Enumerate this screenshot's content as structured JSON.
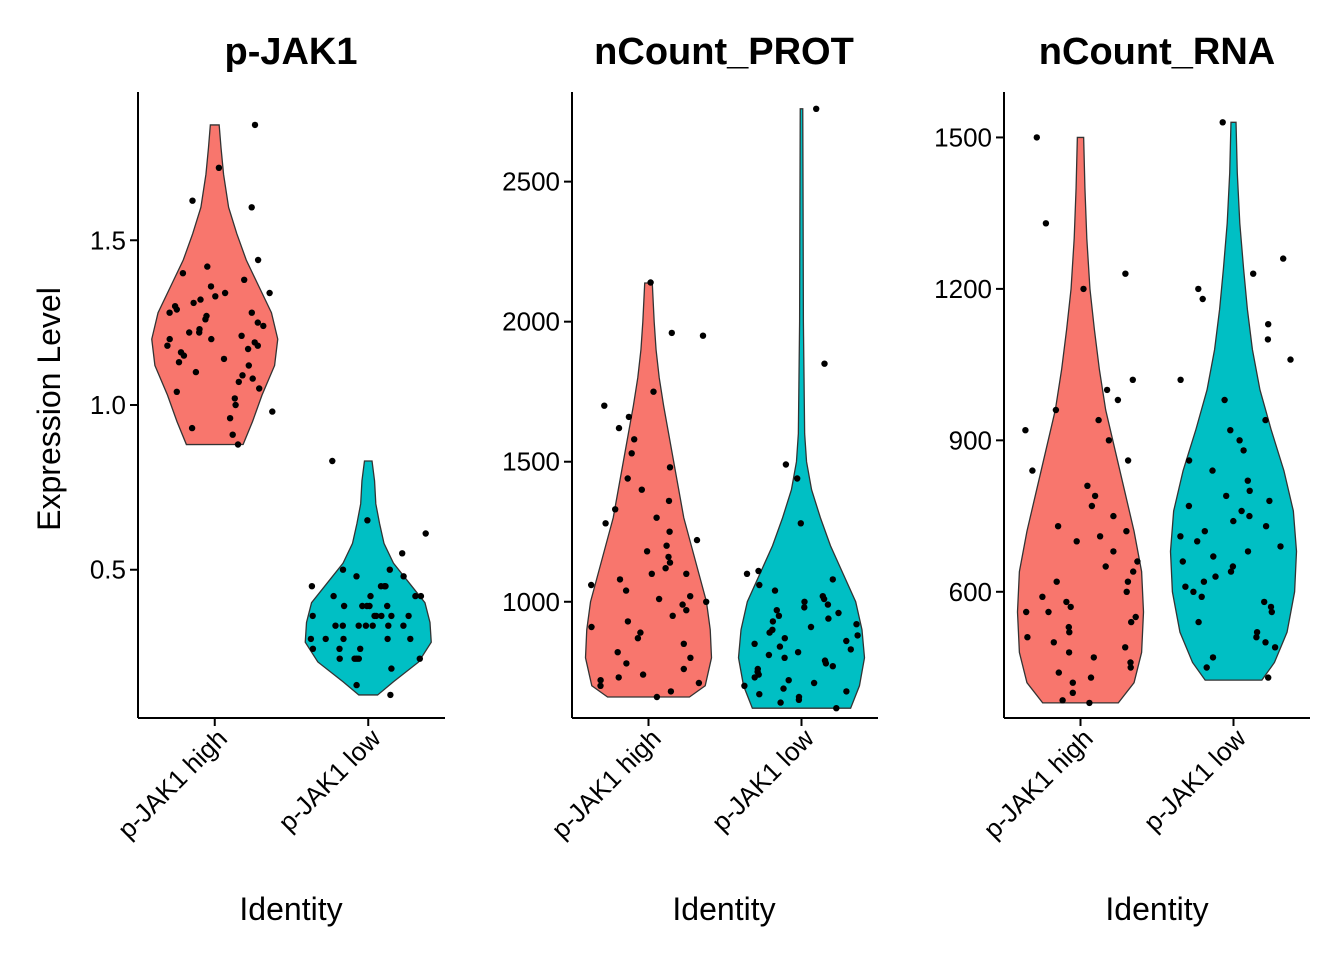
{
  "chart_data": [
    {
      "type": "violin",
      "title": "p-JAK1",
      "xlabel": "Identity",
      "ylabel": "Expression Level",
      "categories": [
        "p-JAK1 high",
        "p-JAK1 low"
      ],
      "colors": [
        "#F8766D",
        "#00BFC4"
      ],
      "ylim": [
        0.05,
        1.95
      ],
      "yticks": [
        0.5,
        1.0,
        1.5
      ],
      "ytick_labels": [
        "0.5",
        "1.0",
        "1.5"
      ],
      "violins": [
        {
          "profile": [
            [
              0.88,
              0.45
            ],
            [
              0.95,
              0.6
            ],
            [
              1.03,
              0.75
            ],
            [
              1.12,
              0.95
            ],
            [
              1.2,
              1.0
            ],
            [
              1.28,
              0.9
            ],
            [
              1.36,
              0.7
            ],
            [
              1.44,
              0.5
            ],
            [
              1.52,
              0.35
            ],
            [
              1.6,
              0.22
            ],
            [
              1.7,
              0.14
            ],
            [
              1.78,
              0.1
            ],
            [
              1.85,
              0.07
            ]
          ],
          "points": [
            0.91,
            0.93,
            0.96,
            0.98,
            1.0,
            1.02,
            1.04,
            1.05,
            1.07,
            1.08,
            1.09,
            1.1,
            1.12,
            1.13,
            1.14,
            1.15,
            1.16,
            1.17,
            1.18,
            1.19,
            1.2,
            1.2,
            1.21,
            1.22,
            1.22,
            1.23,
            1.24,
            1.25,
            1.26,
            1.27,
            1.28,
            1.29,
            1.3,
            1.31,
            1.32,
            1.33,
            1.34,
            1.36,
            1.38,
            1.4,
            1.42,
            1.44,
            1.6,
            1.62,
            1.72,
            1.85,
            0.88,
            1.28,
            1.34,
            1.18
          ]
        },
        {
          "profile": [
            [
              0.12,
              0.15
            ],
            [
              0.16,
              0.4
            ],
            [
              0.22,
              0.8
            ],
            [
              0.28,
              1.0
            ],
            [
              0.34,
              0.98
            ],
            [
              0.4,
              0.9
            ],
            [
              0.46,
              0.65
            ],
            [
              0.52,
              0.4
            ],
            [
              0.58,
              0.25
            ],
            [
              0.64,
              0.18
            ],
            [
              0.7,
              0.12
            ],
            [
              0.77,
              0.1
            ],
            [
              0.83,
              0.06
            ]
          ],
          "points": [
            0.12,
            0.15,
            0.2,
            0.23,
            0.23,
            0.23,
            0.23,
            0.23,
            0.26,
            0.26,
            0.26,
            0.29,
            0.29,
            0.29,
            0.29,
            0.33,
            0.33,
            0.33,
            0.33,
            0.33,
            0.33,
            0.36,
            0.36,
            0.36,
            0.36,
            0.36,
            0.39,
            0.39,
            0.39,
            0.39,
            0.39,
            0.42,
            0.42,
            0.42,
            0.42,
            0.45,
            0.45,
            0.45,
            0.45,
            0.48,
            0.48,
            0.5,
            0.5,
            0.55,
            0.61,
            0.65,
            0.83,
            0.36,
            0.33,
            0.29
          ]
        }
      ]
    },
    {
      "type": "violin",
      "title": "nCount_PROT",
      "xlabel": "Identity",
      "ylabel": "",
      "categories": [
        "p-JAK1 high",
        "p-JAK1 low"
      ],
      "colors": [
        "#F8766D",
        "#00BFC4"
      ],
      "ylim": [
        585,
        2820
      ],
      "yticks": [
        1000,
        1500,
        2000,
        2500
      ],
      "ytick_labels": [
        "1000",
        "1500",
        "2000",
        "2500"
      ],
      "violins": [
        {
          "profile": [
            [
              660,
              0.65
            ],
            [
              700,
              0.9
            ],
            [
              800,
              1.0
            ],
            [
              900,
              0.98
            ],
            [
              1000,
              0.92
            ],
            [
              1100,
              0.8
            ],
            [
              1200,
              0.68
            ],
            [
              1300,
              0.56
            ],
            [
              1400,
              0.48
            ],
            [
              1500,
              0.4
            ],
            [
              1600,
              0.32
            ],
            [
              1700,
              0.24
            ],
            [
              1800,
              0.17
            ],
            [
              1900,
              0.12
            ],
            [
              2000,
              0.09
            ],
            [
              2138,
              0.06
            ]
          ],
          "points": [
            660,
            680,
            700,
            710,
            720,
            730,
            740,
            760,
            780,
            800,
            820,
            850,
            870,
            890,
            910,
            930,
            950,
            970,
            990,
            1000,
            1010,
            1020,
            1040,
            1060,
            1080,
            1100,
            1120,
            1140,
            1160,
            1180,
            1200,
            1220,
            1250,
            1280,
            1300,
            1330,
            1360,
            1400,
            1440,
            1480,
            1530,
            1580,
            1620,
            1660,
            1700,
            1750,
            1950,
            1960,
            2140,
            1100
          ]
        },
        {
          "profile": [
            [
              620,
              0.78
            ],
            [
              700,
              0.92
            ],
            [
              800,
              1.0
            ],
            [
              900,
              0.96
            ],
            [
              1000,
              0.86
            ],
            [
              1100,
              0.66
            ],
            [
              1200,
              0.46
            ],
            [
              1300,
              0.3
            ],
            [
              1400,
              0.16
            ],
            [
              1500,
              0.08
            ],
            [
              1600,
              0.05
            ],
            [
              1800,
              0.04
            ],
            [
              2000,
              0.03
            ],
            [
              2400,
              0.025
            ],
            [
              2760,
              0.02
            ]
          ],
          "points": [
            620,
            640,
            650,
            660,
            670,
            680,
            690,
            700,
            710,
            720,
            730,
            740,
            750,
            760,
            770,
            780,
            790,
            800,
            810,
            820,
            830,
            840,
            850,
            860,
            870,
            880,
            890,
            900,
            910,
            920,
            930,
            940,
            950,
            960,
            970,
            980,
            990,
            1000,
            1010,
            1020,
            1040,
            1060,
            1080,
            1100,
            1110,
            1280,
            1440,
            1490,
            1850,
            2760
          ]
        }
      ]
    },
    {
      "type": "violin",
      "title": "nCount_RNA",
      "xlabel": "Identity",
      "ylabel": "",
      "categories": [
        "p-JAK1 high",
        "p-JAK1 low"
      ],
      "colors": [
        "#F8766D",
        "#00BFC4"
      ],
      "ylim": [
        350,
        1590
      ],
      "yticks": [
        600,
        900,
        1200,
        1500
      ],
      "ytick_labels": [
        "600",
        "900",
        "1200",
        "1500"
      ],
      "violins": [
        {
          "profile": [
            [
              380,
              0.6
            ],
            [
              420,
              0.85
            ],
            [
              480,
              0.97
            ],
            [
              560,
              1.0
            ],
            [
              640,
              0.97
            ],
            [
              720,
              0.85
            ],
            [
              800,
              0.7
            ],
            [
              880,
              0.55
            ],
            [
              960,
              0.4
            ],
            [
              1040,
              0.3
            ],
            [
              1120,
              0.22
            ],
            [
              1200,
              0.15
            ],
            [
              1300,
              0.1
            ],
            [
              1400,
              0.07
            ],
            [
              1500,
              0.05
            ]
          ],
          "points": [
            380,
            385,
            400,
            420,
            430,
            440,
            450,
            460,
            470,
            480,
            490,
            500,
            510,
            520,
            530,
            540,
            550,
            560,
            570,
            580,
            590,
            600,
            620,
            640,
            650,
            660,
            680,
            700,
            710,
            720,
            730,
            750,
            770,
            790,
            810,
            840,
            860,
            900,
            920,
            940,
            960,
            980,
            1000,
            1020,
            1200,
            1230,
            1330,
            1500,
            560,
            620
          ]
        },
        {
          "profile": [
            [
              425,
              0.45
            ],
            [
              460,
              0.65
            ],
            [
              520,
              0.85
            ],
            [
              600,
              0.97
            ],
            [
              680,
              1.0
            ],
            [
              760,
              0.95
            ],
            [
              840,
              0.8
            ],
            [
              920,
              0.6
            ],
            [
              1000,
              0.42
            ],
            [
              1080,
              0.3
            ],
            [
              1160,
              0.22
            ],
            [
              1240,
              0.16
            ],
            [
              1330,
              0.1
            ],
            [
              1430,
              0.06
            ],
            [
              1530,
              0.04
            ]
          ],
          "points": [
            430,
            450,
            470,
            490,
            500,
            510,
            520,
            540,
            560,
            570,
            580,
            590,
            600,
            610,
            620,
            630,
            640,
            650,
            660,
            670,
            680,
            690,
            700,
            710,
            720,
            730,
            740,
            750,
            760,
            770,
            780,
            790,
            800,
            820,
            840,
            860,
            880,
            900,
            940,
            980,
            1020,
            1060,
            1100,
            1130,
            1180,
            1200,
            1230,
            1260,
            1530,
            920
          ]
        }
      ]
    }
  ]
}
